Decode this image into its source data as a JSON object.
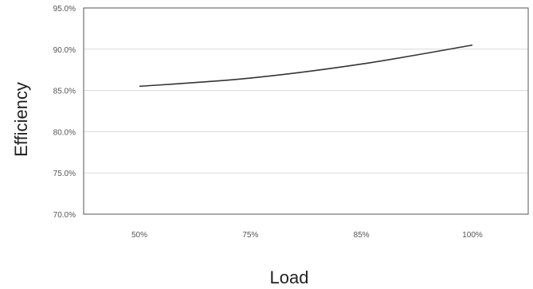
{
  "chart_data": {
    "type": "line",
    "title": "",
    "xlabel": "Load",
    "ylabel": "Efficiency",
    "categories": [
      "50%",
      "75%",
      "85%",
      "100%"
    ],
    "series": [
      {
        "values": [
          85.5,
          86.5,
          88.2,
          90.5
        ]
      }
    ],
    "ylim": [
      70,
      95
    ],
    "yticks": [
      95,
      90,
      85,
      80,
      75,
      70
    ],
    "ytick_labels": [
      "95.0%",
      "90.0%",
      "85.0%",
      "80.0%",
      "75.0%",
      "70.0%"
    ],
    "grid": true,
    "legend": "none",
    "colors": {
      "line": "#333333",
      "grid": "#d9d9d9",
      "frame": "#555555"
    }
  }
}
